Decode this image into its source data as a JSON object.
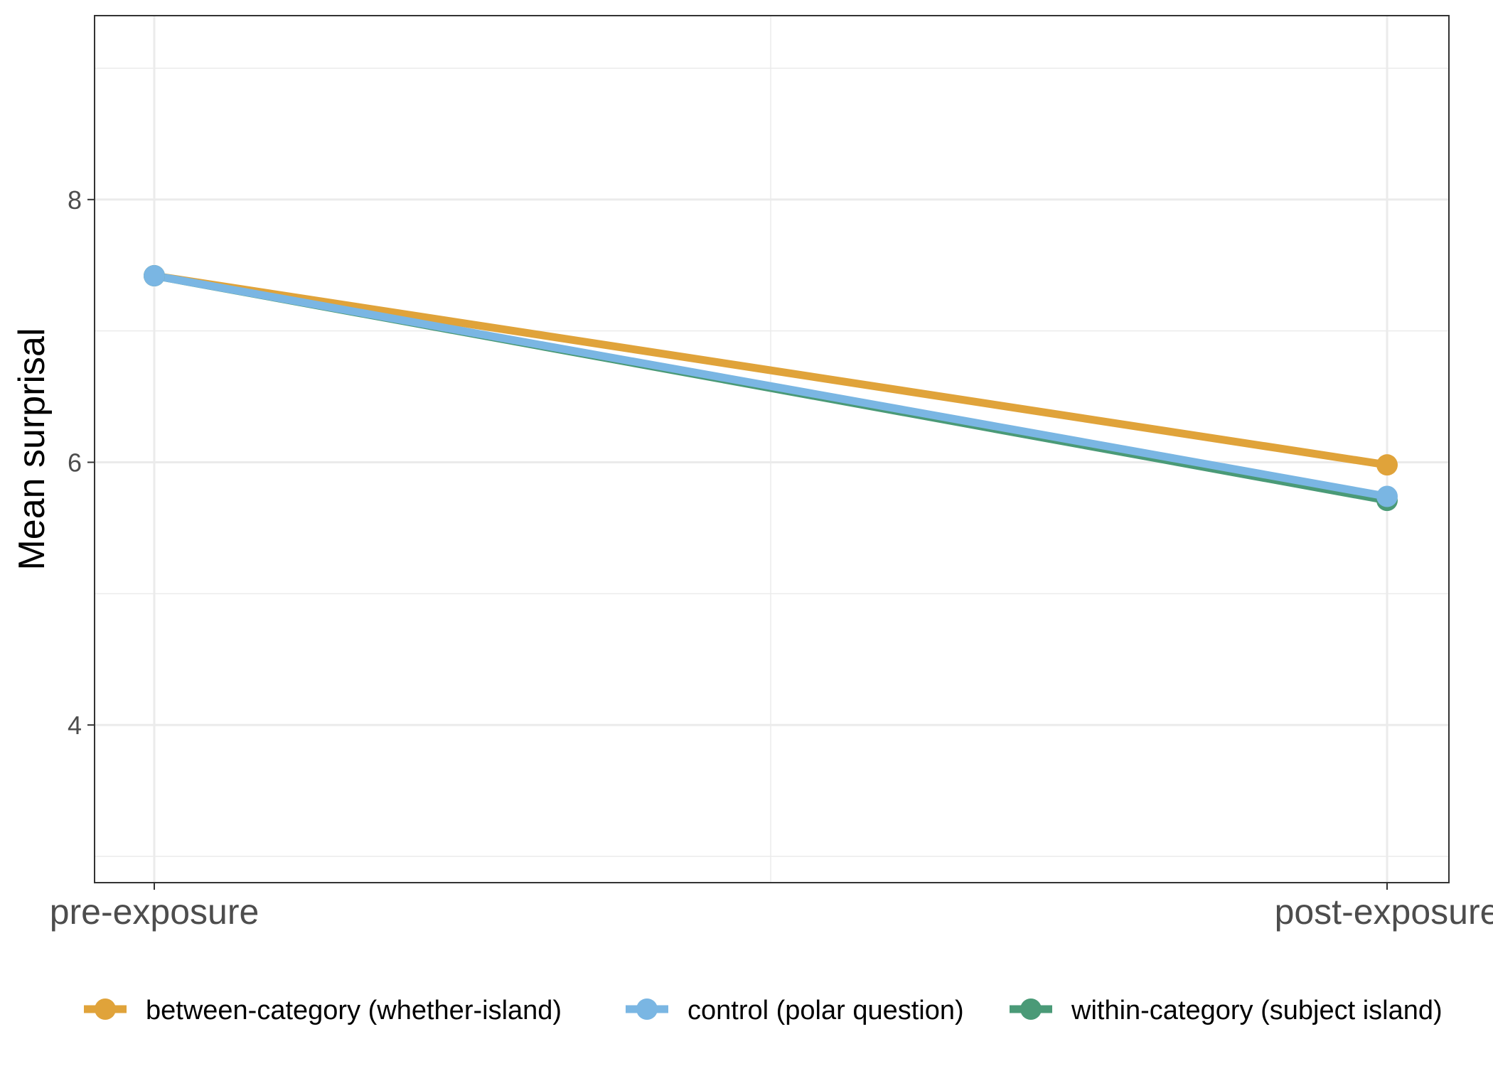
{
  "chart_data": {
    "type": "line",
    "title": "",
    "xlabel": "",
    "ylabel": "Mean surprisal",
    "categories": [
      "pre-exposure",
      "post-exposure"
    ],
    "ylim": [
      2.8,
      9.4
    ],
    "yticks": [
      4,
      6,
      8
    ],
    "grid": true,
    "legend_position": "bottom",
    "series": [
      {
        "name": "between-category (whether-island)",
        "color": "#E0A33A",
        "values": [
          7.42,
          5.98
        ]
      },
      {
        "name": "control (polar question)",
        "color": "#7AB6E3",
        "values": [
          7.42,
          5.74
        ]
      },
      {
        "name": "within-category (subject island)",
        "color": "#4A9A77",
        "values": [
          7.42,
          5.71
        ]
      }
    ]
  }
}
